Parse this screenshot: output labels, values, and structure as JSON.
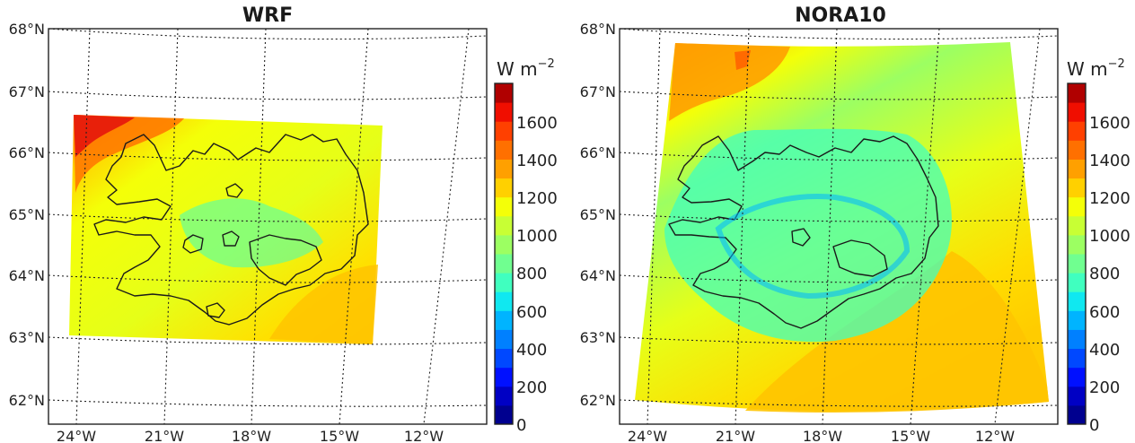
{
  "panels": [
    {
      "id": "wrf",
      "title": "WRF",
      "lat_labels": [
        "68°N",
        "67°N",
        "66°N",
        "65°N",
        "64°N",
        "63°N",
        "62°N"
      ],
      "lon_labels": [
        "24°W",
        "21°W",
        "18°W",
        "15°W",
        "12°W"
      ],
      "colorbar": {
        "unit": "W m",
        "unit_exponent": "−2",
        "ticks": [
          "0",
          "200",
          "400",
          "600",
          "800",
          "1000",
          "1200",
          "1400",
          "1600"
        ]
      }
    },
    {
      "id": "nora10",
      "title": "NORA10",
      "lat_labels": [
        "68°N",
        "67°N",
        "66°N",
        "65°N",
        "64°N",
        "63°N",
        "62°N"
      ],
      "lon_labels": [
        "24°W",
        "21°W",
        "18°W",
        "15°W",
        "12°W"
      ],
      "colorbar": {
        "unit": "W m",
        "unit_exponent": "−2",
        "ticks": [
          "0",
          "200",
          "400",
          "600",
          "800",
          "1000",
          "1200",
          "1400",
          "1600"
        ]
      }
    }
  ],
  "map": {
    "region": "Iceland",
    "lat_range": [
      61.7,
      68.0
    ],
    "lon_range": [
      -25.0,
      -10.0
    ],
    "gridlines": "dotted"
  },
  "colormap": {
    "name": "jet",
    "levels": [
      0,
      100,
      200,
      300,
      400,
      500,
      600,
      700,
      800,
      900,
      1000,
      1100,
      1200,
      1300,
      1400,
      1500,
      1600,
      1700,
      1800
    ],
    "colors": [
      "#00008f",
      "#0000c4",
      "#0010ff",
      "#0048ff",
      "#0080ff",
      "#00b4ff",
      "#10e8f0",
      "#40ffbf",
      "#70ff90",
      "#9cff62",
      "#c8ff34",
      "#f4ff08",
      "#ffd000",
      "#ffa000",
      "#ff7000",
      "#ff4000",
      "#f00e00",
      "#b00000"
    ]
  }
}
